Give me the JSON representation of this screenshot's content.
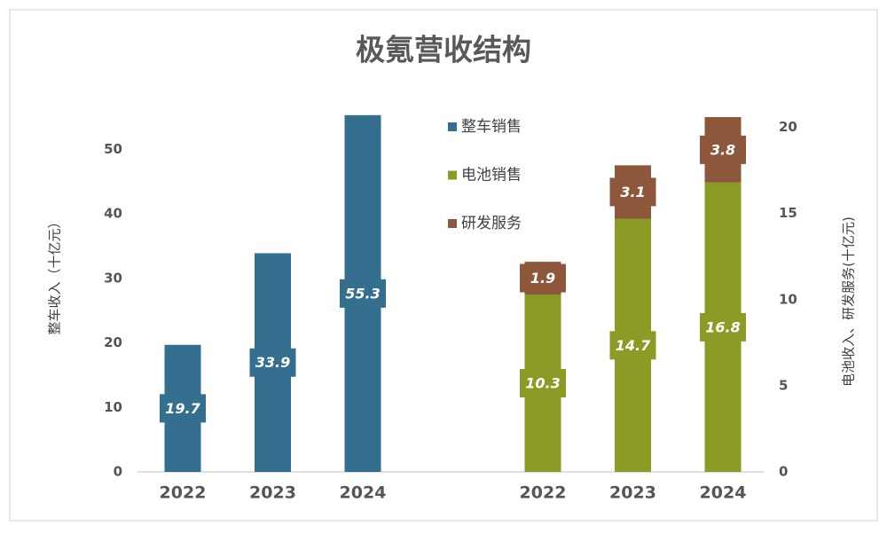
{
  "chart_data": {
    "type": "bar",
    "title": "极氪营收结构",
    "ylabel": "整车收入（十亿元）",
    "y2label": "电池收入、研发服务(十亿元)",
    "categories": [
      "2022",
      "2023",
      "2024",
      "2022",
      "2023",
      "2024"
    ],
    "series": [
      {
        "name": "整车销售",
        "color": "#346f8f",
        "values": [
          19.7,
          33.9,
          55.3,
          null,
          null,
          null
        ]
      },
      {
        "name": "电池销售",
        "color": "#8b9b26",
        "axis": "y2",
        "values": [
          null,
          null,
          null,
          10.3,
          14.7,
          16.8
        ]
      },
      {
        "name": "研发服务",
        "color": "#8c573a",
        "axis": "y2",
        "values": [
          null,
          null,
          null,
          1.9,
          3.1,
          3.8
        ]
      }
    ],
    "ylim": [
      0,
      55
    ],
    "yticks": [
      0,
      10,
      20,
      30,
      40,
      50
    ],
    "y2lim": [
      0,
      20.6
    ],
    "y2ticks": [
      0,
      5,
      10,
      15,
      20
    ]
  }
}
